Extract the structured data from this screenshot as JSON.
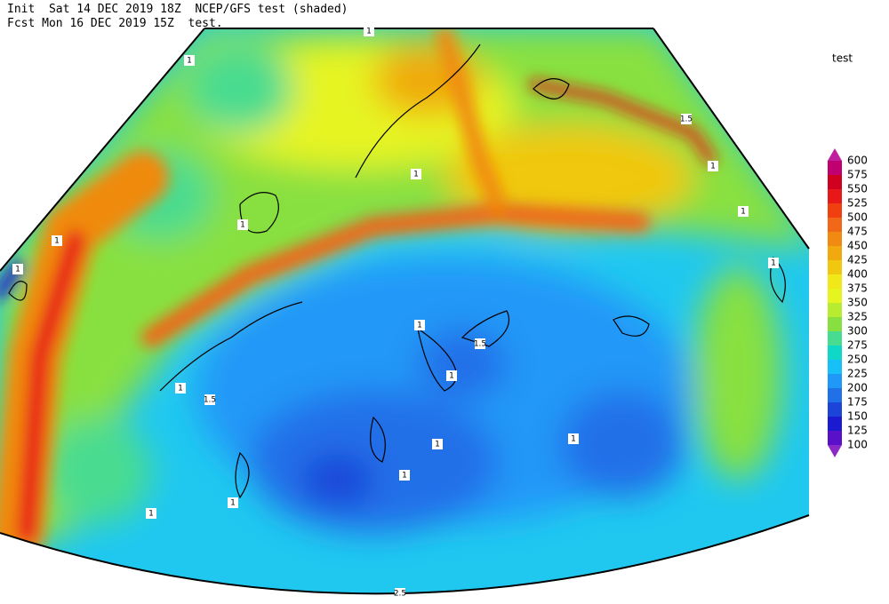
{
  "header": {
    "line1": "Init  Sat 14 DEC 2019 18Z  NCEP/GFS test (shaded)",
    "line2": "Fcst Mon 16 DEC 2019 15Z  test."
  },
  "colorbar": {
    "title": "test",
    "labels": [
      600,
      575,
      550,
      525,
      500,
      475,
      450,
      425,
      400,
      375,
      350,
      325,
      300,
      275,
      250,
      225,
      200,
      175,
      150,
      125,
      100
    ],
    "colors": [
      "#c020a0",
      "#c00070",
      "#d00020",
      "#e81818",
      "#f04010",
      "#f06818",
      "#f08a10",
      "#f0aa10",
      "#f0c810",
      "#f0e818",
      "#e6f420",
      "#b8ec30",
      "#88e040",
      "#48dc90",
      "#10d8c8",
      "#18c0f8",
      "#2098f8",
      "#2070e8",
      "#1c44d8",
      "#1a1ad0",
      "#5a10c8",
      "#8a28c8"
    ]
  },
  "contour_labels": [
    "1",
    "1",
    "1",
    "1",
    "1",
    "1",
    "1",
    "1",
    "1",
    "1.5",
    "1",
    "1.5",
    "1",
    "1",
    "1.5",
    "1",
    "1",
    "1",
    "1",
    "1",
    "2.5"
  ]
}
